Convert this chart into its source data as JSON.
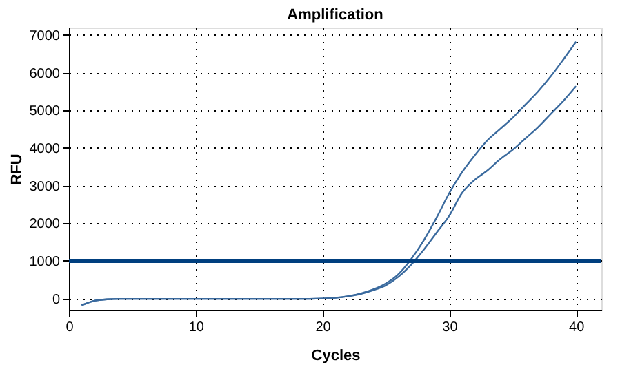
{
  "chart_data": {
    "type": "line",
    "title": "Amplification",
    "xlabel": "Cycles",
    "ylabel": "RFU",
    "x": [
      1,
      2,
      3,
      4,
      5,
      6,
      8,
      10,
      12,
      14,
      16,
      18,
      20,
      21,
      22,
      23,
      24,
      25,
      26,
      27,
      28,
      29,
      30,
      31,
      32,
      33,
      34,
      35,
      36,
      37,
      38,
      39,
      40
    ],
    "series": [
      {
        "color": "#3a6a9e",
        "values": [
          -180,
          -60,
          -20,
          -10,
          -10,
          -10,
          -10,
          -10,
          -10,
          -10,
          -10,
          -10,
          0,
          20,
          60,
          130,
          240,
          400,
          650,
          1050,
          1550,
          2150,
          2800,
          3350,
          3800,
          4200,
          4500,
          4800,
          5150,
          5500,
          5900,
          6350,
          6820
        ]
      },
      {
        "color": "#3a6a9e",
        "values": [
          -180,
          -60,
          -20,
          -10,
          -10,
          -10,
          -10,
          -10,
          -10,
          -10,
          -10,
          -10,
          0,
          20,
          60,
          120,
          220,
          350,
          580,
          900,
          1300,
          1750,
          2200,
          2800,
          3150,
          3400,
          3700,
          3950,
          4250,
          4550,
          4900,
          5250,
          5640
        ]
      }
    ],
    "ref_lines": [
      {
        "axis": "y",
        "value": 1000,
        "color": "#003f7f"
      }
    ],
    "xlim": [
      0,
      42
    ],
    "xticks": [
      0,
      10,
      20,
      30,
      40
    ],
    "ylim": [
      -300,
      7200
    ],
    "yticks": [
      0,
      1000,
      2000,
      3000,
      4000,
      5000,
      6000,
      7000
    ],
    "grid": true,
    "line_style": "solid",
    "marker": "none"
  }
}
